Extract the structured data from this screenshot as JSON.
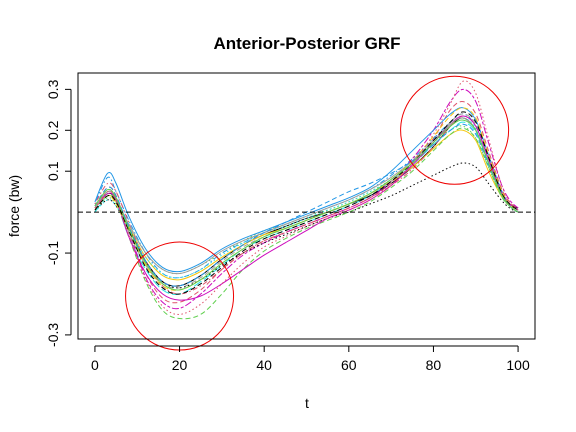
{
  "chart_data": {
    "type": "line",
    "title": "Anterior-Posterior GRF",
    "xlabel": "t",
    "ylabel": "force (bw)",
    "xlim": [
      -4,
      104
    ],
    "ylim": [
      -0.31,
      0.34
    ],
    "x_ticks": [
      0,
      20,
      40,
      60,
      80,
      100
    ],
    "y_ticks": [
      -0.3,
      -0.1,
      0.1,
      0.2,
      0.3
    ],
    "x_tick_labels": [
      "0",
      "20",
      "40",
      "60",
      "80",
      "100"
    ],
    "y_tick_labels": [
      "-0.3",
      "-0.1",
      "0.1",
      "0.2",
      "0.3"
    ],
    "grid": false,
    "legend": "none",
    "reference_line": {
      "y": 0,
      "style": "dashed",
      "color": "#000000"
    },
    "annotations": [
      {
        "shape": "circle",
        "cx": 20,
        "cy": -0.205,
        "color": "#ee0000"
      },
      {
        "shape": "circle",
        "cx": 85,
        "cy": 0.2,
        "color": "#ee0000"
      }
    ],
    "x": [
      0,
      3,
      5,
      8,
      12,
      16,
      20,
      25,
      30,
      35,
      40,
      45,
      50,
      55,
      60,
      65,
      70,
      75,
      80,
      84,
      87,
      90,
      93,
      96,
      98,
      100
    ],
    "series": [
      {
        "color": "#000000",
        "dash": "solid",
        "values": [
          0.01,
          0.045,
          0.03,
          -0.04,
          -0.12,
          -0.17,
          -0.18,
          -0.155,
          -0.115,
          -0.08,
          -0.055,
          -0.035,
          -0.015,
          0.0,
          0.02,
          0.04,
          0.07,
          0.11,
          0.16,
          0.21,
          0.23,
          0.2,
          0.12,
          0.05,
          0.02,
          0.01
        ]
      },
      {
        "color": "#df536b",
        "dash": "dashed",
        "values": [
          0.015,
          0.06,
          0.04,
          -0.05,
          -0.15,
          -0.21,
          -0.22,
          -0.19,
          -0.14,
          -0.1,
          -0.07,
          -0.05,
          -0.03,
          -0.01,
          0.01,
          0.035,
          0.07,
          0.12,
          0.18,
          0.25,
          0.27,
          0.24,
          0.15,
          0.06,
          0.025,
          0.01
        ]
      },
      {
        "color": "#61d04f",
        "dash": "dotted",
        "values": [
          0.005,
          0.035,
          0.02,
          -0.03,
          -0.1,
          -0.14,
          -0.15,
          -0.13,
          -0.1,
          -0.07,
          -0.045,
          -0.03,
          -0.01,
          0.005,
          0.025,
          0.05,
          0.08,
          0.12,
          0.17,
          0.2,
          0.21,
          0.18,
          0.11,
          0.04,
          0.015,
          0.005
        ]
      },
      {
        "color": "#2297e6",
        "dash": "dotdash",
        "values": [
          0.02,
          0.085,
          0.05,
          -0.02,
          -0.1,
          -0.15,
          -0.16,
          -0.14,
          -0.1,
          -0.075,
          -0.05,
          -0.03,
          -0.01,
          0.01,
          0.03,
          0.055,
          0.09,
          0.13,
          0.18,
          0.22,
          0.24,
          0.21,
          0.13,
          0.05,
          0.02,
          0.005
        ]
      },
      {
        "color": "#28e2e5",
        "dash": "longdash",
        "values": [
          0.0,
          0.04,
          0.025,
          -0.06,
          -0.14,
          -0.19,
          -0.2,
          -0.17,
          -0.13,
          -0.09,
          -0.065,
          -0.045,
          -0.025,
          -0.005,
          0.015,
          0.04,
          0.075,
          0.115,
          0.165,
          0.2,
          0.22,
          0.195,
          0.12,
          0.045,
          0.015,
          0.0
        ]
      },
      {
        "color": "#cd0bbc",
        "dash": "twodash",
        "values": [
          0.01,
          0.05,
          0.035,
          -0.045,
          -0.16,
          -0.22,
          -0.235,
          -0.2,
          -0.15,
          -0.105,
          -0.075,
          -0.05,
          -0.03,
          -0.01,
          0.01,
          0.035,
          0.075,
          0.13,
          0.2,
          0.27,
          0.3,
          0.27,
          0.17,
          0.07,
          0.03,
          0.01
        ]
      },
      {
        "color": "#f5c710",
        "dash": "solid",
        "values": [
          0.01,
          0.04,
          0.025,
          -0.035,
          -0.11,
          -0.155,
          -0.165,
          -0.145,
          -0.11,
          -0.08,
          -0.055,
          -0.04,
          -0.02,
          0.0,
          0.02,
          0.045,
          0.075,
          0.11,
          0.155,
          0.19,
          0.2,
          0.175,
          0.1,
          0.04,
          0.015,
          0.0
        ]
      },
      {
        "color": "#9e9e9e",
        "dash": "dashed",
        "values": [
          0.015,
          0.05,
          0.03,
          -0.05,
          -0.13,
          -0.175,
          -0.185,
          -0.16,
          -0.12,
          -0.085,
          -0.06,
          -0.04,
          -0.02,
          0.0,
          0.02,
          0.045,
          0.075,
          0.115,
          0.17,
          0.22,
          0.24,
          0.215,
          0.13,
          0.05,
          0.02,
          0.005
        ]
      },
      {
        "color": "#000000",
        "dash": "dotted",
        "values": [
          0.005,
          0.03,
          0.015,
          -0.04,
          -0.12,
          -0.17,
          -0.185,
          -0.165,
          -0.13,
          -0.1,
          -0.075,
          -0.055,
          -0.035,
          -0.015,
          0.0,
          0.02,
          0.04,
          0.065,
          0.09,
          0.11,
          0.12,
          0.11,
          0.07,
          0.03,
          0.01,
          0.0
        ]
      },
      {
        "color": "#df536b",
        "dash": "dotdash",
        "values": [
          0.02,
          0.07,
          0.05,
          -0.025,
          -0.12,
          -0.18,
          -0.2,
          -0.18,
          -0.14,
          -0.1,
          -0.07,
          -0.05,
          -0.03,
          -0.01,
          0.01,
          0.035,
          0.065,
          0.105,
          0.16,
          0.21,
          0.235,
          0.21,
          0.13,
          0.05,
          0.02,
          0.005
        ]
      },
      {
        "color": "#61d04f",
        "dash": "dashed",
        "values": [
          0.01,
          0.045,
          0.025,
          -0.06,
          -0.17,
          -0.24,
          -0.26,
          -0.25,
          -0.2,
          -0.14,
          -0.095,
          -0.065,
          -0.04,
          -0.02,
          0.0,
          0.025,
          0.06,
          0.1,
          0.15,
          0.19,
          0.205,
          0.18,
          0.11,
          0.04,
          0.015,
          0.0
        ]
      },
      {
        "color": "#2297e6",
        "dash": "solid",
        "values": [
          0.025,
          0.095,
          0.07,
          -0.01,
          -0.09,
          -0.135,
          -0.145,
          -0.125,
          -0.09,
          -0.065,
          -0.045,
          -0.025,
          -0.005,
          0.015,
          0.035,
          0.06,
          0.1,
          0.15,
          0.2,
          0.24,
          0.255,
          0.225,
          0.14,
          0.055,
          0.02,
          0.005
        ]
      },
      {
        "color": "#28e2e5",
        "dash": "dotted",
        "values": [
          0.0,
          0.03,
          0.015,
          -0.04,
          -0.11,
          -0.15,
          -0.16,
          -0.14,
          -0.105,
          -0.075,
          -0.05,
          -0.035,
          -0.015,
          0.005,
          0.025,
          0.05,
          0.08,
          0.125,
          0.175,
          0.215,
          0.23,
          0.205,
          0.125,
          0.045,
          0.015,
          0.0
        ]
      },
      {
        "color": "#cd0bbc",
        "dash": "solid",
        "values": [
          0.01,
          0.045,
          0.03,
          -0.06,
          -0.15,
          -0.2,
          -0.215,
          -0.205,
          -0.175,
          -0.14,
          -0.105,
          -0.075,
          -0.045,
          -0.015,
          0.005,
          0.03,
          0.065,
          0.115,
          0.17,
          0.215,
          0.235,
          0.21,
          0.13,
          0.05,
          0.02,
          0.005
        ]
      },
      {
        "color": "#f5c710",
        "dash": "dashed",
        "values": [
          0.005,
          0.04,
          0.02,
          -0.045,
          -0.13,
          -0.18,
          -0.19,
          -0.165,
          -0.125,
          -0.09,
          -0.06,
          -0.04,
          -0.02,
          0.0,
          0.02,
          0.045,
          0.08,
          0.125,
          0.185,
          0.235,
          0.255,
          0.23,
          0.14,
          0.055,
          0.02,
          0.005
        ]
      },
      {
        "color": "#9e9e9e",
        "dash": "solid",
        "values": [
          0.01,
          0.05,
          0.035,
          -0.03,
          -0.1,
          -0.14,
          -0.15,
          -0.13,
          -0.095,
          -0.07,
          -0.05,
          -0.03,
          -0.01,
          0.01,
          0.03,
          0.055,
          0.085,
          0.125,
          0.175,
          0.215,
          0.23,
          0.2,
          0.12,
          0.045,
          0.015,
          0.0
        ]
      },
      {
        "color": "#2297e6",
        "dash": "dashed",
        "values": [
          0.015,
          0.06,
          0.04,
          -0.035,
          -0.12,
          -0.17,
          -0.18,
          -0.155,
          -0.115,
          -0.08,
          -0.05,
          -0.025,
          0.0,
          0.025,
          0.05,
          0.07,
          0.095,
          0.125,
          0.165,
          0.2,
          0.215,
          0.19,
          0.115,
          0.045,
          0.015,
          0.0
        ]
      },
      {
        "color": "#df536b",
        "dash": "dotted",
        "values": [
          0.01,
          0.05,
          0.03,
          -0.055,
          -0.165,
          -0.23,
          -0.25,
          -0.225,
          -0.175,
          -0.125,
          -0.085,
          -0.06,
          -0.035,
          -0.015,
          0.005,
          0.03,
          0.065,
          0.12,
          0.19,
          0.265,
          0.32,
          0.29,
          0.18,
          0.07,
          0.025,
          0.005
        ]
      },
      {
        "color": "#000000",
        "dash": "dashed",
        "values": [
          0.005,
          0.04,
          0.025,
          -0.045,
          -0.135,
          -0.185,
          -0.2,
          -0.175,
          -0.135,
          -0.095,
          -0.065,
          -0.045,
          -0.025,
          -0.005,
          0.015,
          0.04,
          0.075,
          0.12,
          0.175,
          0.22,
          0.245,
          0.22,
          0.135,
          0.05,
          0.02,
          0.005
        ]
      },
      {
        "color": "#61d04f",
        "dash": "solid",
        "values": [
          0.015,
          0.055,
          0.035,
          -0.04,
          -0.125,
          -0.175,
          -0.19,
          -0.165,
          -0.125,
          -0.09,
          -0.06,
          -0.04,
          -0.02,
          0.0,
          0.02,
          0.045,
          0.08,
          0.12,
          0.17,
          0.21,
          0.225,
          0.2,
          0.12,
          0.045,
          0.015,
          0.0
        ]
      }
    ]
  }
}
